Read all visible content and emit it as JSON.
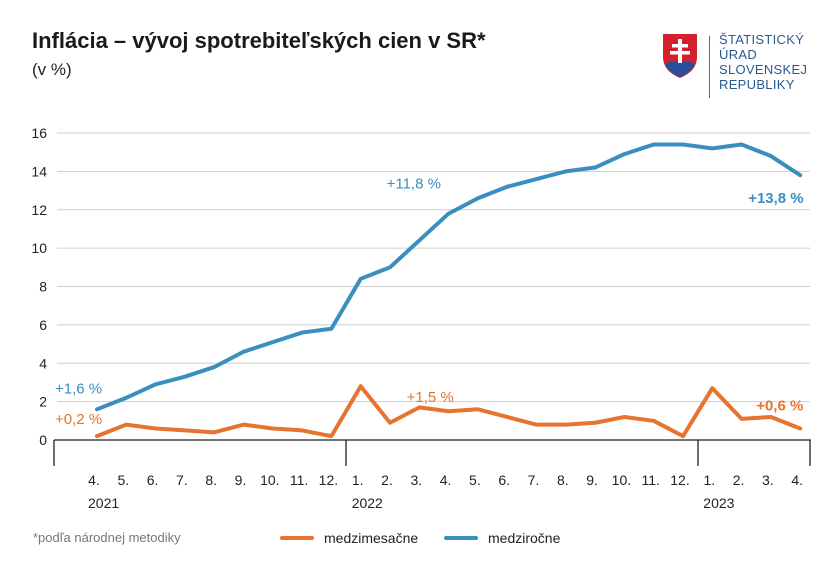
{
  "header": {
    "title": "Inflácia – vývoj spotrebiteľských cien v SR*",
    "subtitle": "(v %)"
  },
  "logo": {
    "lines": [
      "ŠTATISTICKÝ",
      "ÚRAD",
      "SLOVENSKEJ",
      "REPUBLIKY"
    ]
  },
  "footnote": "*podľa národnej metodiky",
  "chart_data": {
    "type": "line",
    "title": "Inflácia – vývoj spotrebiteľských cien v SR*",
    "ylabel": "(v %)",
    "ylim": [
      0,
      16
    ],
    "yticks": [
      "0",
      "2",
      "4",
      "6",
      "8",
      "10",
      "12",
      "14",
      "16"
    ],
    "grid": true,
    "legend": "bottom",
    "categories": [
      "4.",
      "5.",
      "6.",
      "7.",
      "8.",
      "9.",
      "10.",
      "11.",
      "12.",
      "1.",
      "2.",
      "3.",
      "4.",
      "5.",
      "6.",
      "7.",
      "8.",
      "9.",
      "10.",
      "11.",
      "12.",
      "1.",
      "2.",
      "3.",
      "4."
    ],
    "years": [
      {
        "label": "2021",
        "start": 0
      },
      {
        "label": "2022",
        "start": 9
      },
      {
        "label": "2023",
        "start": 21
      }
    ],
    "series": [
      {
        "name": "medzimesačne",
        "color": "#e8732f",
        "values": [
          0.2,
          0.8,
          0.6,
          0.5,
          0.4,
          0.8,
          0.6,
          0.5,
          0.2,
          2.8,
          0.9,
          1.7,
          1.5,
          1.6,
          1.2,
          0.8,
          0.8,
          0.9,
          1.2,
          1.0,
          0.2,
          2.7,
          1.1,
          1.2,
          0.6
        ]
      },
      {
        "name": "medziročne",
        "color": "#3a8fc0",
        "values": [
          1.6,
          2.2,
          2.9,
          3.3,
          3.8,
          4.6,
          5.1,
          5.6,
          5.8,
          8.4,
          9.0,
          10.4,
          11.8,
          12.6,
          13.2,
          13.6,
          14.0,
          14.2,
          14.9,
          15.4,
          15.4,
          15.2,
          15.4,
          14.8,
          13.8
        ]
      }
    ],
    "annotations": [
      {
        "text": "+1,6 %",
        "series": 1,
        "index": 0,
        "bold": false
      },
      {
        "text": "+0,2 %",
        "series": 0,
        "index": 0,
        "bold": false
      },
      {
        "text": "+11,8 %",
        "series": 1,
        "index": 12,
        "bold": false
      },
      {
        "text": "+1,5 %",
        "series": 0,
        "index": 12,
        "bold": false
      },
      {
        "text": "+13,8 %",
        "series": 1,
        "index": 24,
        "bold": true
      },
      {
        "text": "+0,6 %",
        "series": 0,
        "index": 24,
        "bold": true
      }
    ]
  }
}
